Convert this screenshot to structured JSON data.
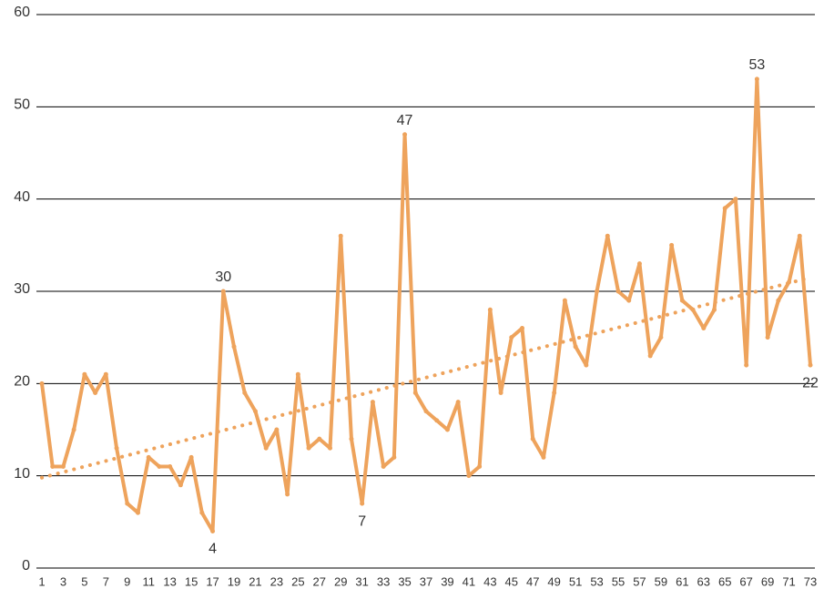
{
  "chart_data": {
    "type": "line",
    "x": [
      1,
      2,
      3,
      4,
      5,
      6,
      7,
      8,
      9,
      10,
      11,
      12,
      13,
      14,
      15,
      16,
      17,
      18,
      19,
      20,
      21,
      22,
      23,
      24,
      25,
      26,
      27,
      28,
      29,
      30,
      31,
      32,
      33,
      34,
      35,
      36,
      37,
      38,
      39,
      40,
      41,
      42,
      43,
      44,
      45,
      46,
      47,
      48,
      49,
      50,
      51,
      52,
      53,
      54,
      55,
      56,
      57,
      58,
      59,
      60,
      61,
      62,
      63,
      64,
      65,
      66,
      67,
      68,
      69,
      70,
      71,
      72,
      73
    ],
    "values": [
      20,
      11,
      11,
      15,
      21,
      19,
      21,
      13,
      7,
      6,
      12,
      11,
      11,
      9,
      12,
      6,
      4,
      30,
      24,
      19,
      17,
      13,
      15,
      8,
      21,
      13,
      14,
      13,
      36,
      14,
      7,
      18,
      11,
      12,
      47,
      19,
      17,
      16,
      15,
      18,
      10,
      11,
      28,
      19,
      25,
      26,
      14,
      12,
      19,
      29,
      24,
      22,
      30,
      36,
      30,
      29,
      33,
      23,
      25,
      35,
      29,
      28,
      26,
      28,
      39,
      40,
      22,
      53,
      25,
      29,
      31,
      36,
      22
    ],
    "value_labels": [
      null,
      null,
      null,
      null,
      null,
      null,
      null,
      null,
      null,
      null,
      null,
      null,
      null,
      null,
      null,
      null,
      "4",
      "30",
      null,
      null,
      null,
      null,
      null,
      null,
      null,
      null,
      null,
      null,
      null,
      null,
      "7",
      null,
      null,
      null,
      "47",
      null,
      null,
      null,
      null,
      null,
      null,
      null,
      null,
      null,
      null,
      null,
      null,
      null,
      null,
      null,
      null,
      null,
      null,
      null,
      null,
      null,
      null,
      null,
      null,
      null,
      null,
      null,
      null,
      null,
      null,
      null,
      null,
      "53",
      null,
      null,
      null,
      null,
      "22"
    ],
    "color": "#eea35c",
    "trendline": {
      "start": 9.8,
      "end": 31.5
    },
    "xlim": [
      1,
      73
    ],
    "xticks": [
      1,
      3,
      5,
      7,
      9,
      11,
      13,
      15,
      17,
      19,
      21,
      23,
      25,
      27,
      29,
      31,
      33,
      35,
      37,
      39,
      41,
      43,
      45,
      47,
      49,
      51,
      53,
      55,
      57,
      59,
      61,
      63,
      65,
      67,
      69,
      71,
      73
    ],
    "ylim": [
      0,
      60
    ],
    "yticks": [
      0,
      10,
      20,
      30,
      40,
      50,
      60
    ],
    "grid": true
  }
}
